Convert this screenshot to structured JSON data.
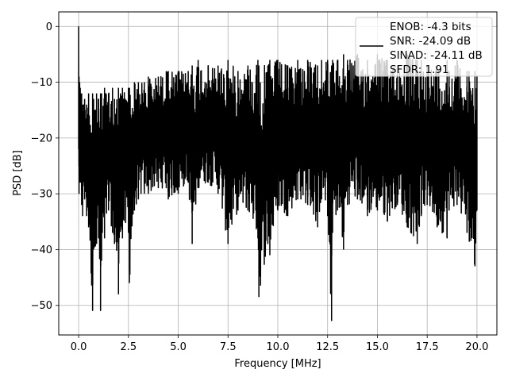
{
  "chart_data": {
    "type": "line",
    "title": "",
    "xlabel": "Frequency [MHz]",
    "ylabel": "PSD [dB]",
    "xlim": [
      -1.0,
      21.0
    ],
    "ylim": [
      -55.3,
      2.6
    ],
    "xticks": [
      0.0,
      2.5,
      5.0,
      7.5,
      10.0,
      12.5,
      15.0,
      17.5,
      20.0
    ],
    "xtick_labels": [
      "0.0",
      "2.5",
      "5.0",
      "7.5",
      "10.0",
      "12.5",
      "15.0",
      "17.5",
      "20.0"
    ],
    "yticks": [
      0,
      -10,
      -20,
      -30,
      -40,
      -50
    ],
    "ytick_labels": [
      "0",
      "−10",
      "−20",
      "−30",
      "−40",
      "−50"
    ],
    "grid": true,
    "legend_position": "top-right",
    "series": [
      {
        "name": "ENOB: -4.3 bits\nSNR: -24.09 dB\nSINAD: -24.11 dB\nSFDR: 1.91",
        "color": "#000000",
        "x": [
          0.0,
          0.02,
          0.05,
          0.08,
          0.1,
          0.15,
          0.2,
          0.3,
          0.4,
          0.5,
          0.7,
          0.75,
          0.9,
          1.0,
          1.1,
          1.15,
          1.3,
          1.5,
          1.7,
          1.8,
          2.0,
          2.1,
          2.2,
          2.5,
          2.55,
          2.8,
          3.0,
          3.3,
          3.5,
          4.0,
          4.4,
          4.5,
          5.0,
          5.5,
          5.7,
          6.0,
          6.5,
          7.0,
          7.5,
          8.0,
          8.5,
          9.0,
          9.05,
          9.5,
          9.6,
          10.0,
          10.5,
          11.0,
          11.5,
          12.0,
          12.2,
          12.5,
          12.7,
          12.75,
          13.0,
          13.3,
          13.5,
          14.0,
          14.5,
          15.0,
          15.5,
          16.0,
          16.5,
          17.0,
          17.2,
          17.5,
          18.0,
          18.5,
          18.6,
          19.0,
          19.5,
          19.9,
          20.0
        ],
        "y_top": [
          0.0,
          -9.0,
          -10.0,
          -11.0,
          -12.0,
          -12.0,
          -14.0,
          -13.0,
          -14.0,
          -12.0,
          -12.0,
          -13.0,
          -12.0,
          -13.0,
          -12.0,
          -12.0,
          -11.0,
          -12.0,
          -11.0,
          -13.0,
          -11.0,
          -12.0,
          -11.0,
          -11.0,
          -11.0,
          -10.0,
          -10.0,
          -10.0,
          -9.0,
          -9.0,
          -8.0,
          -8.0,
          -8.0,
          -8.0,
          -7.0,
          -6.0,
          -7.0,
          -7.0,
          -6.0,
          -8.0,
          -7.0,
          -6.0,
          -7.0,
          -7.0,
          -6.0,
          -6.0,
          -7.0,
          -6.0,
          -6.0,
          -7.0,
          -6.0,
          -6.0,
          -7.0,
          -6.0,
          -6.0,
          -5.0,
          -6.0,
          -5.0,
          -6.0,
          -5.0,
          -6.0,
          -7.0,
          -5.0,
          -6.0,
          -6.0,
          -7.0,
          -7.0,
          -6.0,
          -8.0,
          -6.0,
          -8.0,
          -8.0,
          -9.0
        ],
        "y_bottom": [
          -22.0,
          -30.0,
          -26.0,
          -28.0,
          -28.0,
          -32.0,
          -34.0,
          -31.0,
          -34.0,
          -36.0,
          -51.0,
          -40.0,
          -39.0,
          -38.0,
          -51.0,
          -42.0,
          -38.0,
          -33.0,
          -37.0,
          -39.0,
          -48.0,
          -36.0,
          -38.0,
          -37.0,
          -46.0,
          -33.0,
          -31.0,
          -30.0,
          -30.0,
          -29.0,
          -29.0,
          -31.0,
          -30.0,
          -28.0,
          -39.0,
          -29.0,
          -28.0,
          -30.0,
          -39.0,
          -33.0,
          -33.0,
          -38.0,
          -48.5,
          -39.0,
          -41.0,
          -33.0,
          -34.0,
          -31.0,
          -32.0,
          -36.0,
          -31.0,
          -34.0,
          -52.8,
          -37.0,
          -33.0,
          -40.0,
          -32.0,
          -31.0,
          -34.0,
          -33.0,
          -35.0,
          -32.0,
          -36.0,
          -39.0,
          -34.0,
          -32.0,
          -36.0,
          -38.0,
          -33.0,
          -32.0,
          -37.0,
          -43.0,
          -33.0
        ]
      }
    ]
  }
}
